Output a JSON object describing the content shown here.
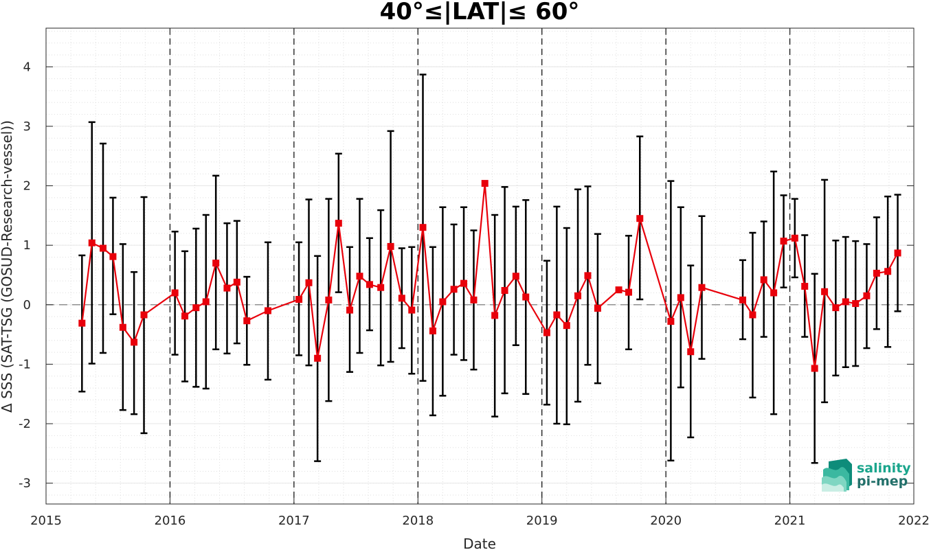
{
  "chart_data": {
    "type": "line",
    "title": "40°≤|LAT|≤ 60°",
    "xlabel": "Date",
    "ylabel": "Δ SSS (SAT-TSG (GOSUD-Research-vessel))",
    "xlim": [
      2015,
      2022
    ],
    "ylim": [
      -3.35,
      4.65
    ],
    "xticks": [
      2015,
      2016,
      2017,
      2018,
      2019,
      2020,
      2021,
      2022
    ],
    "xtick_labels": [
      "2015",
      "2016",
      "2017",
      "2018",
      "2019",
      "2020",
      "2021",
      "2022"
    ],
    "yticks": [
      -3,
      -2,
      -1,
      0,
      1,
      2,
      3,
      4
    ],
    "ytick_labels": [
      "-3",
      "-2",
      "-1",
      "0",
      "1",
      "2",
      "3",
      "4"
    ],
    "grid": true,
    "minor_grid": true,
    "zero_line": "dashed gray",
    "year_separators": "dashed black vertical lines at each year boundary",
    "series": [
      {
        "color": "#e8000b",
        "errorbar_color": "#000000",
        "points": [
          {
            "x": 2015.29,
            "y": -0.31,
            "lo": -1.46,
            "hi": 0.83
          },
          {
            "x": 2015.37,
            "y": 1.04,
            "lo": -0.99,
            "hi": 3.07
          },
          {
            "x": 2015.46,
            "y": 0.95,
            "lo": -0.81,
            "hi": 2.71
          },
          {
            "x": 2015.54,
            "y": 0.81,
            "lo": -0.16,
            "hi": 1.8
          },
          {
            "x": 2015.62,
            "y": -0.38,
            "lo": -1.77,
            "hi": 1.02
          },
          {
            "x": 2015.71,
            "y": -0.63,
            "lo": -1.84,
            "hi": 0.55
          },
          {
            "x": 2015.79,
            "y": -0.17,
            "lo": -2.16,
            "hi": 1.81
          },
          {
            "x": 2016.04,
            "y": 0.2,
            "lo": -0.84,
            "hi": 1.23
          },
          {
            "x": 2016.12,
            "y": -0.19,
            "lo": -1.29,
            "hi": 0.9
          },
          {
            "x": 2016.21,
            "y": -0.05,
            "lo": -1.38,
            "hi": 1.28
          },
          {
            "x": 2016.29,
            "y": 0.05,
            "lo": -1.41,
            "hi": 1.51
          },
          {
            "x": 2016.37,
            "y": 0.7,
            "lo": -0.75,
            "hi": 2.17
          },
          {
            "x": 2016.46,
            "y": 0.28,
            "lo": -0.82,
            "hi": 1.37
          },
          {
            "x": 2016.54,
            "y": 0.38,
            "lo": -0.65,
            "hi": 1.41
          },
          {
            "x": 2016.62,
            "y": -0.27,
            "lo": -1.01,
            "hi": 0.47
          },
          {
            "x": 2016.79,
            "y": -0.1,
            "lo": -1.26,
            "hi": 1.05
          },
          {
            "x": 2017.04,
            "y": 0.09,
            "lo": -0.85,
            "hi": 1.05
          },
          {
            "x": 2017.12,
            "y": 0.37,
            "lo": -1.02,
            "hi": 1.77
          },
          {
            "x": 2017.19,
            "y": -0.9,
            "lo": -2.63,
            "hi": 0.82
          },
          {
            "x": 2017.28,
            "y": 0.08,
            "lo": -1.62,
            "hi": 1.78
          },
          {
            "x": 2017.36,
            "y": 1.37,
            "lo": 0.21,
            "hi": 2.54
          },
          {
            "x": 2017.45,
            "y": -0.09,
            "lo": -1.13,
            "hi": 0.97
          },
          {
            "x": 2017.53,
            "y": 0.48,
            "lo": -0.81,
            "hi": 1.78
          },
          {
            "x": 2017.61,
            "y": 0.34,
            "lo": -0.43,
            "hi": 1.12
          },
          {
            "x": 2017.7,
            "y": 0.29,
            "lo": -1.02,
            "hi": 1.59
          },
          {
            "x": 2017.78,
            "y": 0.98,
            "lo": -0.96,
            "hi": 2.92
          },
          {
            "x": 2017.87,
            "y": 0.11,
            "lo": -0.73,
            "hi": 0.95
          },
          {
            "x": 2017.95,
            "y": -0.09,
            "lo": -1.16,
            "hi": 0.97
          },
          {
            "x": 2018.04,
            "y": 1.3,
            "lo": -1.28,
            "hi": 3.87
          },
          {
            "x": 2018.12,
            "y": -0.44,
            "lo": -1.86,
            "hi": 0.97
          },
          {
            "x": 2018.2,
            "y": 0.05,
            "lo": -1.53,
            "hi": 1.64
          },
          {
            "x": 2018.29,
            "y": 0.26,
            "lo": -0.84,
            "hi": 1.35
          },
          {
            "x": 2018.37,
            "y": 0.36,
            "lo": -0.93,
            "hi": 1.64
          },
          {
            "x": 2018.45,
            "y": 0.08,
            "lo": -1.09,
            "hi": 1.25
          },
          {
            "x": 2018.54,
            "y": 2.04,
            "lo": 2.04,
            "hi": 2.04
          },
          {
            "x": 2018.62,
            "y": -0.18,
            "lo": -1.88,
            "hi": 1.51
          },
          {
            "x": 2018.7,
            "y": 0.24,
            "lo": -1.49,
            "hi": 1.98
          },
          {
            "x": 2018.79,
            "y": 0.48,
            "lo": -0.68,
            "hi": 1.65
          },
          {
            "x": 2018.87,
            "y": 0.13,
            "lo": -1.5,
            "hi": 1.76
          },
          {
            "x": 2019.04,
            "y": -0.47,
            "lo": -1.68,
            "hi": 0.74
          },
          {
            "x": 2019.12,
            "y": -0.17,
            "lo": -2.0,
            "hi": 1.65
          },
          {
            "x": 2019.2,
            "y": -0.35,
            "lo": -2.01,
            "hi": 1.29
          },
          {
            "x": 2019.29,
            "y": 0.15,
            "lo": -1.63,
            "hi": 1.94
          },
          {
            "x": 2019.37,
            "y": 0.49,
            "lo": -1.01,
            "hi": 1.99
          },
          {
            "x": 2019.45,
            "y": -0.06,
            "lo": -1.32,
            "hi": 1.19
          },
          {
            "x": 2019.62,
            "y": 0.25,
            "lo": 0.25,
            "hi": 0.25
          },
          {
            "x": 2019.7,
            "y": 0.21,
            "lo": -0.75,
            "hi": 1.16
          },
          {
            "x": 2019.79,
            "y": 1.45,
            "lo": 0.09,
            "hi": 2.83
          },
          {
            "x": 2020.04,
            "y": -0.28,
            "lo": -2.62,
            "hi": 2.08
          },
          {
            "x": 2020.12,
            "y": 0.12,
            "lo": -1.39,
            "hi": 1.64
          },
          {
            "x": 2020.2,
            "y": -0.79,
            "lo": -2.23,
            "hi": 0.66
          },
          {
            "x": 2020.29,
            "y": 0.29,
            "lo": -0.91,
            "hi": 1.49
          },
          {
            "x": 2020.62,
            "y": 0.08,
            "lo": -0.58,
            "hi": 0.75
          },
          {
            "x": 2020.7,
            "y": -0.17,
            "lo": -1.56,
            "hi": 1.21
          },
          {
            "x": 2020.79,
            "y": 0.42,
            "lo": -0.54,
            "hi": 1.4
          },
          {
            "x": 2020.87,
            "y": 0.2,
            "lo": -1.84,
            "hi": 2.24
          },
          {
            "x": 2020.95,
            "y": 1.07,
            "lo": 0.29,
            "hi": 1.84
          },
          {
            "x": 2021.04,
            "y": 1.12,
            "lo": 0.46,
            "hi": 1.78
          },
          {
            "x": 2021.12,
            "y": 0.31,
            "lo": -0.54,
            "hi": 1.17
          },
          {
            "x": 2021.2,
            "y": -1.07,
            "lo": -2.66,
            "hi": 0.52
          },
          {
            "x": 2021.28,
            "y": 0.22,
            "lo": -1.64,
            "hi": 2.1
          },
          {
            "x": 2021.37,
            "y": -0.05,
            "lo": -1.19,
            "hi": 1.08
          },
          {
            "x": 2021.45,
            "y": 0.05,
            "lo": -1.05,
            "hi": 1.14
          },
          {
            "x": 2021.53,
            "y": 0.02,
            "lo": -1.03,
            "hi": 1.07
          },
          {
            "x": 2021.62,
            "y": 0.15,
            "lo": -0.73,
            "hi": 1.02
          },
          {
            "x": 2021.7,
            "y": 0.53,
            "lo": -0.41,
            "hi": 1.47
          },
          {
            "x": 2021.79,
            "y": 0.56,
            "lo": -0.71,
            "hi": 1.82
          },
          {
            "x": 2021.87,
            "y": 0.87,
            "lo": -0.11,
            "hi": 1.85
          }
        ]
      }
    ]
  },
  "logo": {
    "line1": "salinity",
    "line2": "pi-mep",
    "color_line1": "#1aa58c",
    "color_line2": "#22706a",
    "mark_colors": [
      "#0e8c7a",
      "#3bb8a0",
      "#7fd6c2",
      "#c9eee4"
    ],
    "icon": "salinity-wave-logo-icon"
  }
}
